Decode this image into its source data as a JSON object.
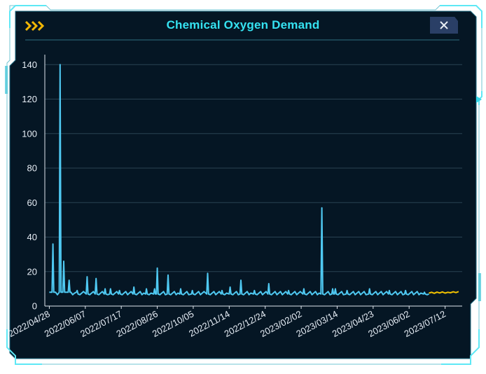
{
  "window": {
    "title": "Chemical Oxygen Demand",
    "close_icon": "close-icon"
  },
  "colors": {
    "accent": "#35e3f2",
    "series_actual": "#4fc9f2",
    "series_forecast": "#f2c200",
    "panel": "#051624",
    "grid": "#2a4252"
  },
  "chart_data": {
    "type": "line",
    "title": "Chemical Oxygen Demand",
    "xlabel": "",
    "ylabel": "",
    "ylim": [
      0,
      145
    ],
    "yticks": [
      0,
      20,
      40,
      60,
      80,
      100,
      120,
      140
    ],
    "xlim": [
      "2022-04-23",
      "2023-07-31"
    ],
    "xticks": [
      "2022/04/28",
      "2022/06/07",
      "2022/07/17",
      "2022/08/26",
      "2022/10/05",
      "2022/11/14",
      "2022/12/24",
      "2023/02/02",
      "2023/03/14",
      "2023/04/23",
      "2023/06/02",
      "2023/07/12"
    ],
    "grid": true,
    "baseline": 7.5,
    "series": [
      {
        "style": "actual",
        "x": [
          "2022-04-28",
          "2022-05-01",
          "2022-05-02",
          "2022-05-03",
          "2022-05-04",
          "2022-05-05",
          "2022-05-09",
          "2022-05-10",
          "2022-05-11",
          "2022-05-12",
          "2022-05-13",
          "2022-05-14",
          "2022-05-15",
          "2022-05-16",
          "2022-05-17",
          "2022-05-19",
          "2022-05-20",
          "2022-05-21",
          "2022-05-22",
          "2022-05-28",
          "2022-05-29",
          "2022-05-30",
          "2022-06-08",
          "2022-06-09",
          "2022-06-10",
          "2022-06-18",
          "2022-06-19",
          "2022-06-20",
          "2022-06-28",
          "2022-06-29",
          "2022-06-30",
          "2022-07-04",
          "2022-07-05",
          "2022-07-06",
          "2022-07-14",
          "2022-07-15",
          "2022-07-16",
          "2022-07-30",
          "2022-07-31",
          "2022-08-01",
          "2022-08-13",
          "2022-08-14",
          "2022-08-15",
          "2022-08-22",
          "2022-08-23",
          "2022-08-24",
          "2022-08-25",
          "2022-08-26",
          "2022-08-27",
          "2022-09-06",
          "2022-09-07",
          "2022-09-08",
          "2022-09-20",
          "2022-09-21",
          "2022-09-22",
          "2022-10-03",
          "2022-10-04",
          "2022-10-05",
          "2022-10-20",
          "2022-10-21",
          "2022-10-22",
          "2022-11-05",
          "2022-11-06",
          "2022-11-07",
          "2022-11-14",
          "2022-11-15",
          "2022-11-16",
          "2022-11-26",
          "2022-11-27",
          "2022-11-28",
          "2022-12-11",
          "2022-12-12",
          "2022-12-13",
          "2022-12-27",
          "2022-12-28",
          "2022-12-29",
          "2023-01-18",
          "2023-01-19",
          "2023-01-20",
          "2023-02-04",
          "2023-02-05",
          "2023-02-06",
          "2023-02-24",
          "2023-02-25",
          "2023-02-26",
          "2023-03-08",
          "2023-03-09",
          "2023-03-10",
          "2023-03-11",
          "2023-03-12",
          "2023-03-13",
          "2023-03-24",
          "2023-03-25",
          "2023-03-26",
          "2023-04-18",
          "2023-04-19",
          "2023-04-20",
          "2023-05-10",
          "2023-05-11",
          "2023-05-12",
          "2023-05-28",
          "2023-05-29",
          "2023-05-30",
          "2023-06-18",
          "2023-06-19",
          "2023-06-20",
          "2023-06-24"
        ],
        "y": [
          8,
          8,
          36,
          8,
          8,
          8,
          8,
          140,
          8,
          8,
          8,
          26,
          8,
          8,
          8,
          8,
          15,
          8,
          8,
          8,
          9,
          7,
          7,
          17,
          7,
          7,
          16,
          7,
          7,
          10,
          7,
          7,
          10,
          7,
          7,
          9,
          7,
          7,
          11,
          7,
          7,
          10,
          7,
          7,
          10,
          7,
          7,
          22,
          7,
          7,
          18,
          7,
          7,
          10,
          7,
          7,
          9,
          7,
          7,
          19,
          7,
          7,
          9,
          7,
          7,
          11,
          7,
          7,
          15,
          7,
          7,
          9,
          7,
          7,
          13,
          7,
          7,
          9,
          7,
          7,
          10,
          7,
          7,
          57,
          7,
          7,
          10,
          7,
          7,
          10,
          7,
          7,
          9,
          7,
          7,
          10,
          7,
          7,
          9,
          7,
          7,
          9,
          7,
          7,
          8,
          7,
          7
        ]
      },
      {
        "style": "forecast",
        "x": [
          "2023-06-24",
          "2023-06-27",
          "2023-06-30",
          "2023-07-03",
          "2023-07-06",
          "2023-07-09",
          "2023-07-12",
          "2023-07-15",
          "2023-07-18",
          "2023-07-21",
          "2023-07-24",
          "2023-07-27"
        ],
        "y": [
          7.5,
          8.0,
          7.4,
          8.1,
          7.6,
          8.2,
          7.5,
          8.0,
          7.7,
          8.3,
          7.8,
          8.4
        ]
      }
    ]
  }
}
